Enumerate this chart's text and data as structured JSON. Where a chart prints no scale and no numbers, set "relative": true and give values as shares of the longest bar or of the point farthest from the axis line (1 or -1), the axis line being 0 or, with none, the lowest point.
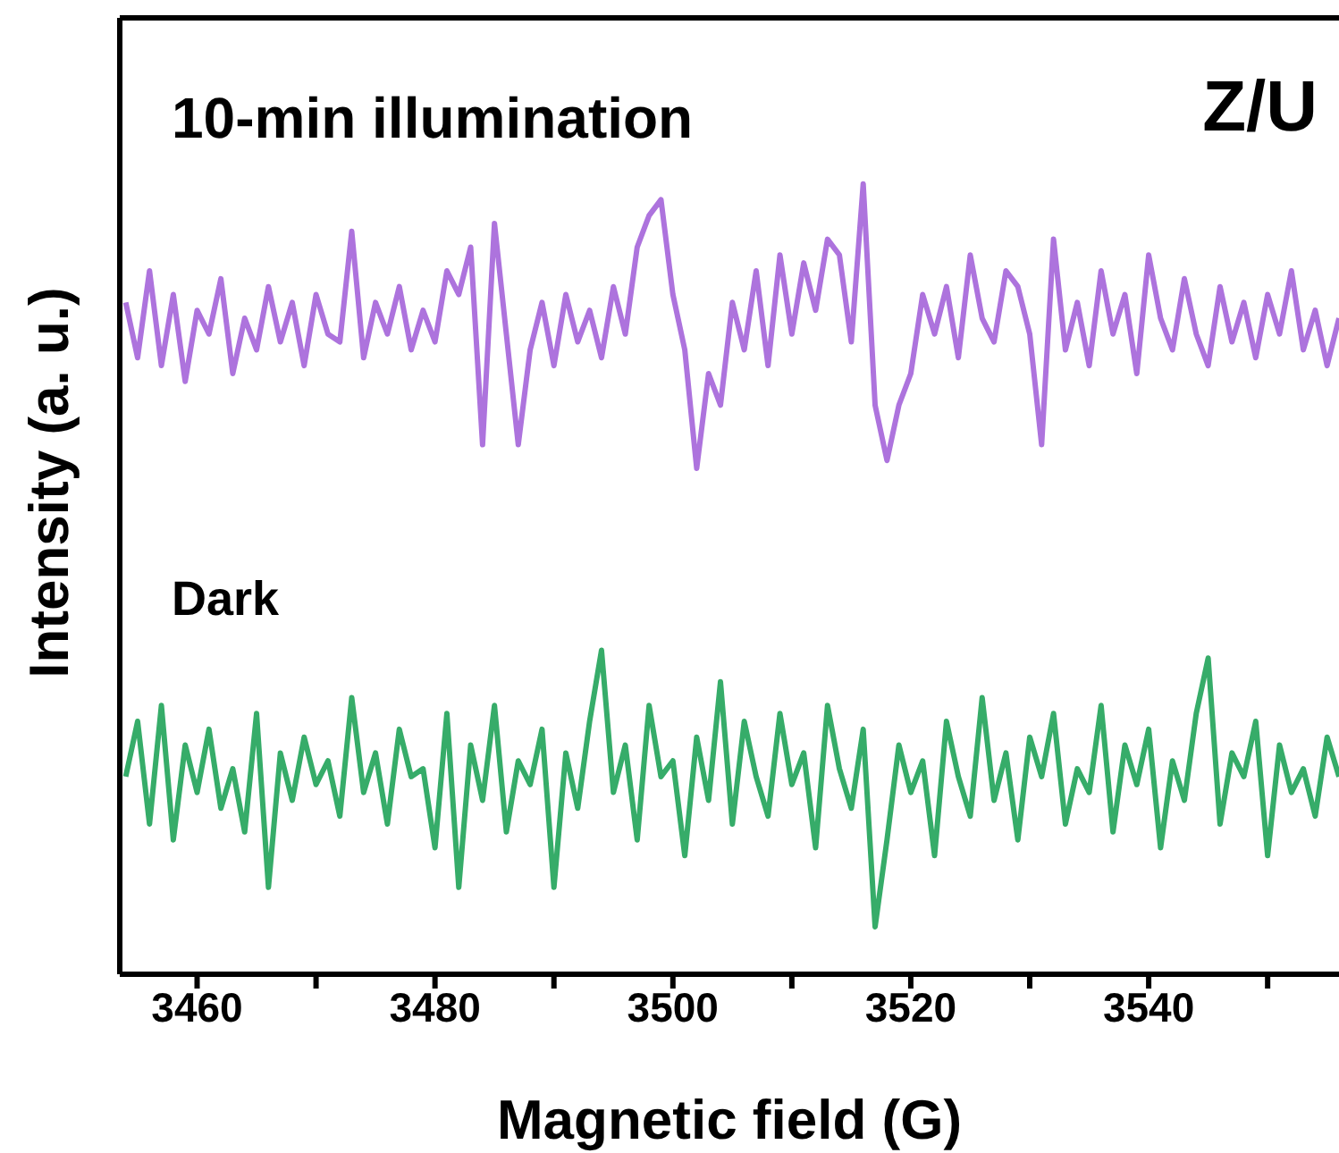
{
  "chart_data": {
    "type": "line",
    "title": "Z/U",
    "xlabel": "Magnetic field (G)",
    "ylabel": "Intensity (a. u.)",
    "relative": true,
    "x": [
      3454,
      3455,
      3456,
      3457,
      3458,
      3459,
      3460,
      3461,
      3462,
      3463,
      3464,
      3465,
      3466,
      3467,
      3468,
      3469,
      3470,
      3471,
      3472,
      3473,
      3474,
      3475,
      3476,
      3477,
      3478,
      3479,
      3480,
      3481,
      3482,
      3483,
      3484,
      3485,
      3486,
      3487,
      3488,
      3489,
      3490,
      3491,
      3492,
      3493,
      3494,
      3495,
      3496,
      3497,
      3498,
      3499,
      3500,
      3501,
      3502,
      3503,
      3504,
      3505,
      3506,
      3507,
      3508,
      3509,
      3510,
      3511,
      3512,
      3513,
      3514,
      3515,
      3516,
      3517,
      3518,
      3519,
      3520,
      3521,
      3522,
      3523,
      3524,
      3525,
      3526,
      3527,
      3528,
      3529,
      3530,
      3531,
      3532,
      3533,
      3534,
      3535,
      3536,
      3537,
      3538,
      3539,
      3540,
      3541,
      3542,
      3543,
      3544,
      3545,
      3546,
      3547,
      3548,
      3549,
      3550,
      3551,
      3552,
      3553,
      3554,
      3555,
      3556
    ],
    "xlim": [
      3453.5,
      3556
    ],
    "xticks": [
      3460,
      {
        "value": 3470,
        "label": null
      },
      3480,
      {
        "value": 3490,
        "label": null
      },
      3500,
      {
        "value": 3510,
        "label": null
      },
      3520,
      {
        "value": 3530,
        "label": null
      },
      3540,
      {
        "value": 3550,
        "label": null
      }
    ],
    "series": [
      {
        "name": "10-min illumination",
        "color": "#ad73dd",
        "values": [
          0.85,
          0.78,
          0.89,
          0.77,
          0.86,
          0.75,
          0.84,
          0.81,
          0.88,
          0.76,
          0.83,
          0.79,
          0.87,
          0.8,
          0.85,
          0.77,
          0.86,
          0.81,
          0.8,
          0.94,
          0.78,
          0.85,
          0.81,
          0.87,
          0.79,
          0.84,
          0.8,
          0.89,
          0.86,
          0.92,
          0.67,
          0.95,
          0.81,
          0.67,
          0.79,
          0.85,
          0.77,
          0.86,
          0.8,
          0.84,
          0.78,
          0.87,
          0.81,
          0.92,
          0.96,
          0.98,
          0.86,
          0.79,
          0.64,
          0.76,
          0.72,
          0.85,
          0.79,
          0.89,
          0.77,
          0.91,
          0.81,
          0.9,
          0.84,
          0.93,
          0.91,
          0.8,
          1,
          0.72,
          0.65,
          0.72,
          0.76,
          0.86,
          0.81,
          0.87,
          0.78,
          0.91,
          0.83,
          0.8,
          0.89,
          0.87,
          0.81,
          0.67,
          0.93,
          0.79,
          0.85,
          0.77,
          0.89,
          0.81,
          0.86,
          0.76,
          0.91,
          0.83,
          0.79,
          0.88,
          0.81,
          0.77,
          0.87,
          0.8,
          0.85,
          0.78,
          0.86,
          0.81,
          0.89,
          0.79,
          0.84,
          0.77,
          0.83
        ]
      },
      {
        "name": "Dark",
        "color": "#36ac69",
        "values": [
          0.25,
          0.32,
          0.19,
          0.34,
          0.17,
          0.29,
          0.23,
          0.31,
          0.21,
          0.26,
          0.18,
          0.33,
          0.11,
          0.28,
          0.22,
          0.3,
          0.24,
          0.27,
          0.2,
          0.35,
          0.23,
          0.28,
          0.19,
          0.31,
          0.25,
          0.26,
          0.16,
          0.33,
          0.11,
          0.29,
          0.22,
          0.34,
          0.18,
          0.27,
          0.24,
          0.31,
          0.11,
          0.28,
          0.21,
          0.32,
          0.41,
          0.23,
          0.29,
          0.17,
          0.34,
          0.25,
          0.27,
          0.15,
          0.3,
          0.22,
          0.37,
          0.19,
          0.32,
          0.25,
          0.2,
          0.33,
          0.24,
          0.28,
          0.16,
          0.34,
          0.26,
          0.21,
          0.31,
          0.06,
          0.17,
          0.29,
          0.23,
          0.27,
          0.15,
          0.32,
          0.25,
          0.2,
          0.35,
          0.22,
          0.28,
          0.17,
          0.3,
          0.25,
          0.33,
          0.19,
          0.26,
          0.23,
          0.34,
          0.18,
          0.29,
          0.24,
          0.31,
          0.16,
          0.27,
          0.22,
          0.33,
          0.4,
          0.19,
          0.28,
          0.25,
          0.32,
          0.15,
          0.29,
          0.23,
          0.26,
          0.2,
          0.3,
          0.25
        ]
      }
    ]
  }
}
